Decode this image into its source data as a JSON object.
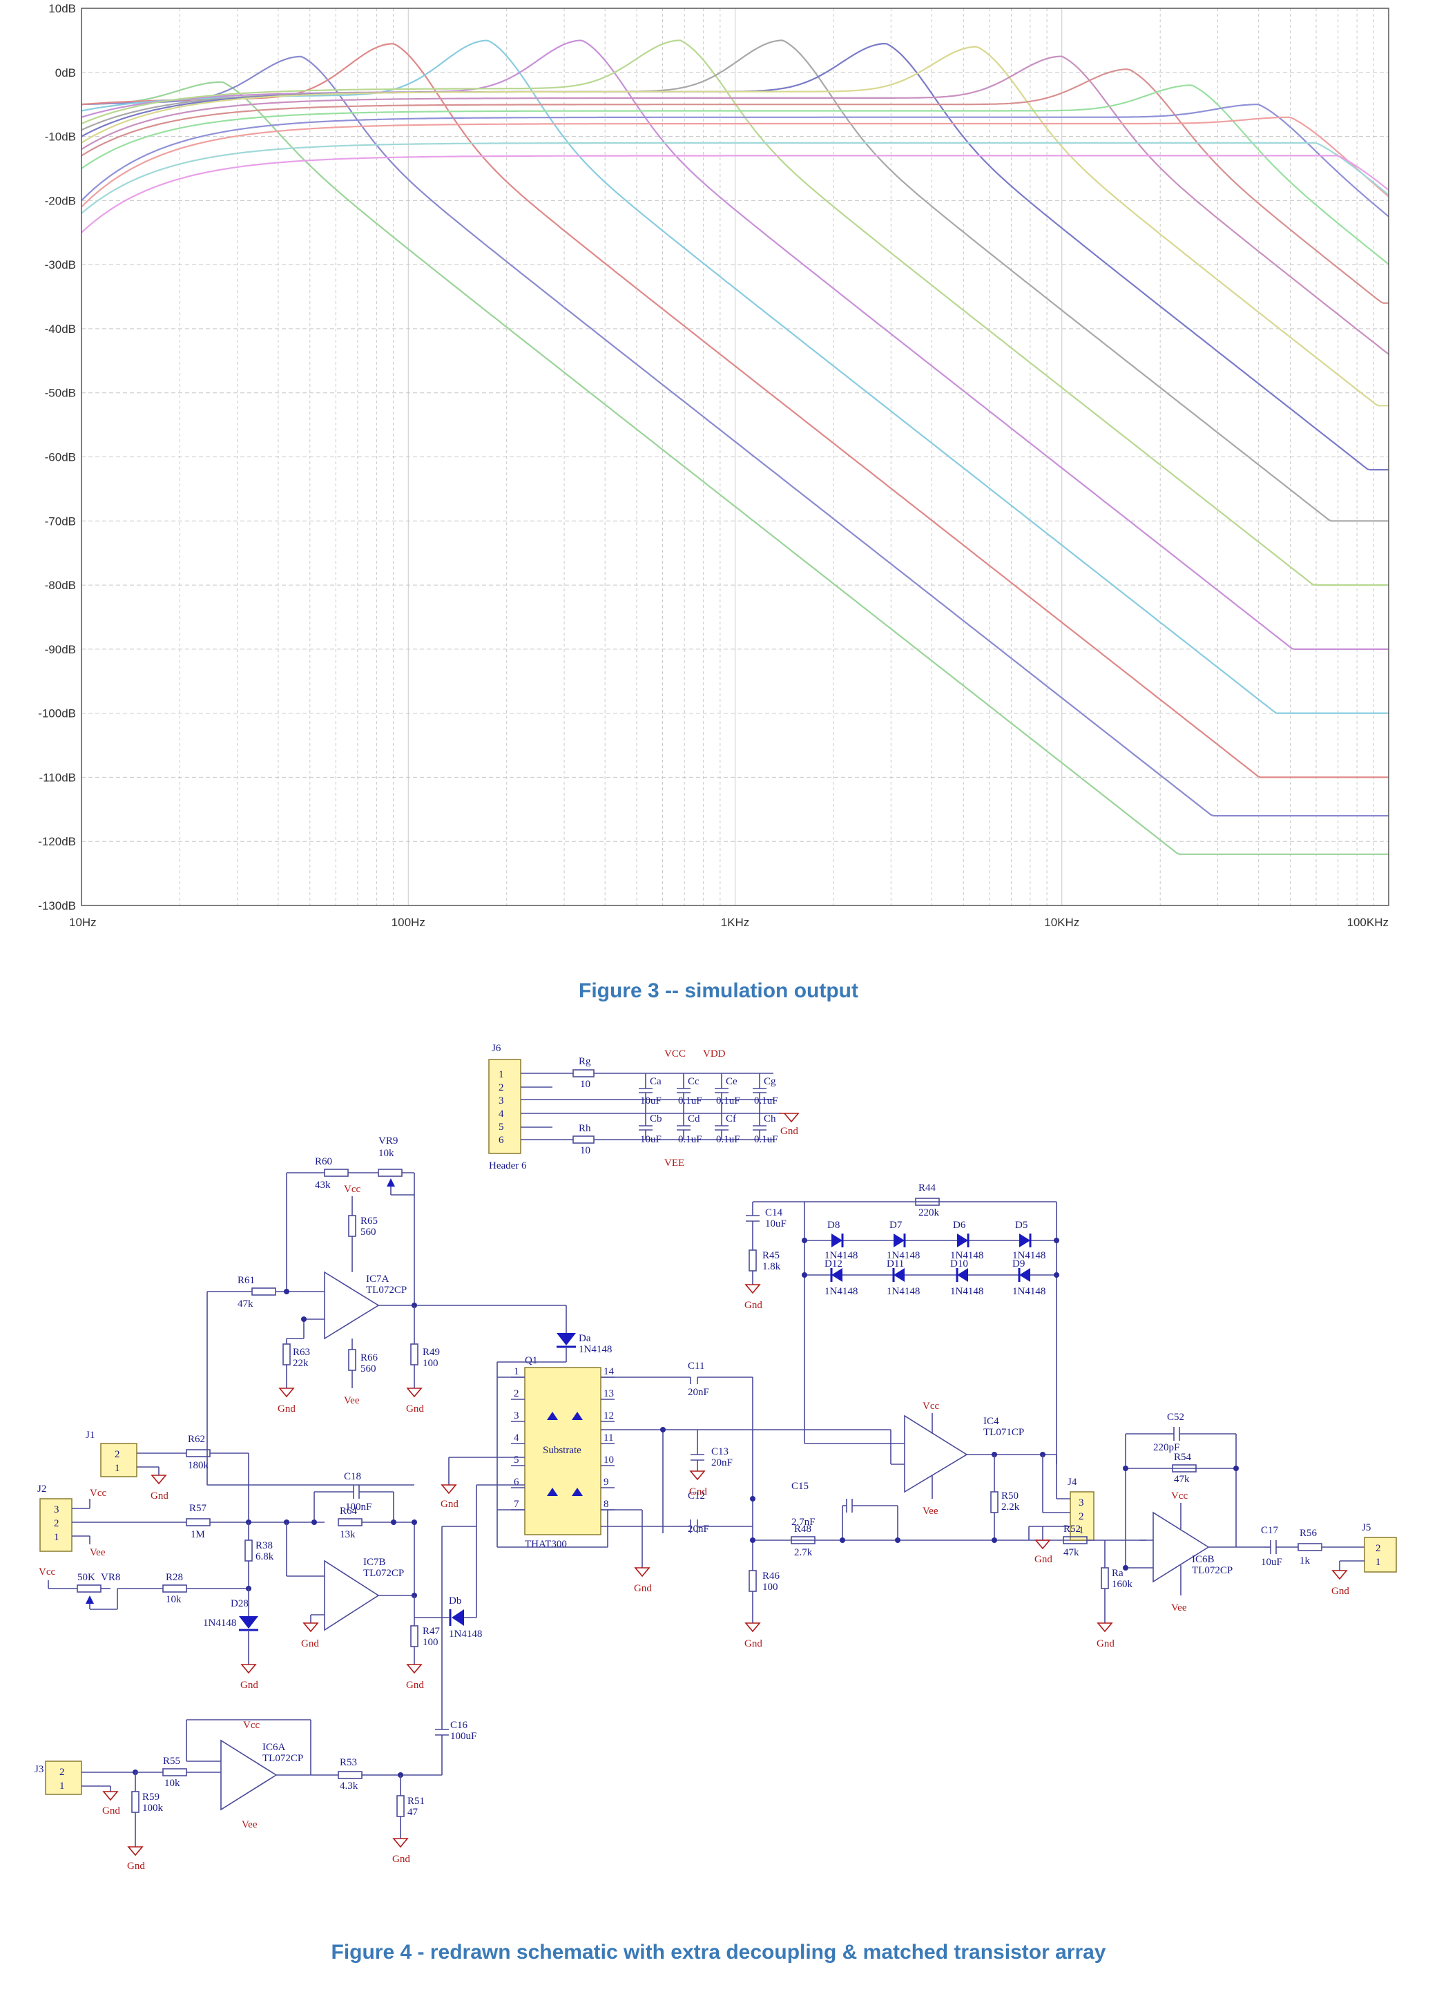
{
  "chart_data": {
    "type": "line",
    "title": "",
    "xlabel": "",
    "ylabel": "",
    "x_scale": "log",
    "xlim": [
      10,
      100000
    ],
    "ylim": [
      -130,
      10
    ],
    "grid": true,
    "legend": "none",
    "y_ticks": [
      "10dB",
      "0dB",
      "-10dB",
      "-20dB",
      "-30dB",
      "-40dB",
      "-50dB",
      "-60dB",
      "-70dB",
      "-80dB",
      "-90dB",
      "-100dB",
      "-110dB",
      "-120dB",
      "-130dB"
    ],
    "x_ticks": [
      "10Hz",
      "100Hz",
      "1KHz",
      "10KHz",
      "100KHz"
    ],
    "series": [
      {
        "color": "#9ad49a",
        "fc_hz": 27,
        "peak_db": -1.5,
        "low_db": -5,
        "start_db": -5,
        "end_db": -122
      },
      {
        "color": "#8a8ad0",
        "fc_hz": 47,
        "peak_db": 2.5,
        "low_db": -4.5,
        "start_db": -5,
        "end_db": -116
      },
      {
        "color": "#e08888",
        "fc_hz": 90,
        "peak_db": 4.5,
        "low_db": -4,
        "start_db": -5,
        "end_db": -110
      },
      {
        "color": "#88cce0",
        "fc_hz": 175,
        "peak_db": 5,
        "low_db": -3.5,
        "start_db": -6,
        "end_db": -100
      },
      {
        "color": "#c890d8",
        "fc_hz": 340,
        "peak_db": 5,
        "low_db": -3,
        "start_db": -7,
        "end_db": -90
      },
      {
        "color": "#b8d890",
        "fc_hz": 680,
        "peak_db": 5,
        "low_db": -2.5,
        "start_db": -8,
        "end_db": -80
      },
      {
        "color": "#a8a8a8",
        "fc_hz": 1400,
        "peak_db": 5,
        "low_db": -3,
        "start_db": -9,
        "end_db": -70
      },
      {
        "color": "#7a7ac8",
        "fc_hz": 2900,
        "peak_db": 4.5,
        "low_db": -3,
        "start_db": -10,
        "end_db": -62
      },
      {
        "color": "#d8d890",
        "fc_hz": 5500,
        "peak_db": 4,
        "low_db": -3,
        "start_db": -11,
        "end_db": -52
      },
      {
        "color": "#c890c0",
        "fc_hz": 10000,
        "peak_db": 2.5,
        "low_db": -4,
        "start_db": -12,
        "end_db": -45
      },
      {
        "color": "#d89090",
        "fc_hz": 16000,
        "peak_db": 0.5,
        "low_db": -5,
        "start_db": -13,
        "end_db": -36
      },
      {
        "color": "#98e0a0",
        "fc_hz": 25000,
        "peak_db": -2,
        "low_db": -6,
        "start_db": -15,
        "end_db": -30
      },
      {
        "color": "#9090d8",
        "fc_hz": 40000,
        "peak_db": -5,
        "low_db": -7,
        "start_db": -20,
        "end_db": -26
      },
      {
        "color": "#f0a0a0",
        "fc_hz": 50000,
        "peak_db": -7,
        "low_db": -8,
        "start_db": -21,
        "end_db": -24
      },
      {
        "color": "#a0d8d8",
        "fc_hz": 60000,
        "peak_db": -11,
        "low_db": -11,
        "start_db": -22,
        "end_db": -26
      },
      {
        "color": "#e8a0e8",
        "fc_hz": 70000,
        "peak_db": -13,
        "low_db": -13,
        "start_db": -25,
        "end_db": -27
      }
    ]
  },
  "figure3_caption": "Figure 3 -- simulation output",
  "figure4_caption": "Figure 4 - redrawn schematic with extra decoupling & matched transistor array",
  "schematic": {
    "labels": {
      "J6": "J6",
      "header6": "Header 6",
      "pins": [
        "1",
        "2",
        "3",
        "4",
        "5",
        "6"
      ],
      "Rg": "Rg",
      "Rg_v": "10",
      "Rh": "Rh",
      "Rh_v": "10",
      "VCC": "VCC",
      "VDD": "VDD",
      "VEE": "VEE",
      "Ca": "Ca",
      "Ca_v": "10uF",
      "Cb": "Cb",
      "Cb_v": "10uF",
      "Cc": "Cc",
      "Cc_v": "0.1uF",
      "Cd": "Cd",
      "Cd_v": "0.1uF",
      "Ce": "Ce",
      "Ce_v": "0.1uF",
      "Cf": "Cf",
      "Cf_v": "0.1uF",
      "Cg": "Cg",
      "Cg_v": "0.1uF",
      "Ch": "Ch",
      "Ch_v": "0.1uF",
      "Gnd": "Gnd",
      "Vcc": "Vcc",
      "Vee": "Vee",
      "R60": "R60",
      "R60_v": "43k",
      "VR9": "VR9",
      "VR9_v": "10k",
      "R65": "R65",
      "R65_v": "560",
      "R66": "R66",
      "R66_v": "560",
      "R61": "R61",
      "R61_v": "47k",
      "R63": "R63",
      "R63_v": "22k",
      "IC7A": "IC7A",
      "TL072CP": "TL072CP",
      "R49": "R49",
      "R49_v": "100",
      "Da": "Da",
      "Db": "Db",
      "D28": "D28",
      "N4148": "1N4148",
      "Q1": "Q1",
      "Substrate": "Substrate",
      "THAT300": "THAT300",
      "C11": "C11",
      "C11_v": "20nF",
      "C12": "C12",
      "C12_v": "20nF",
      "C13": "C13",
      "C13_v": "20nF",
      "C14": "C14",
      "C14_v": "10uF",
      "R45": "R45",
      "R45_v": "1.8k",
      "R44": "R44",
      "R44_v": "220k",
      "D8": "D8",
      "D7": "D7",
      "D6": "D6",
      "D5": "D5",
      "D12": "D12",
      "D11": "D11",
      "D10": "D10",
      "D9": "D9",
      "IC4": "IC4",
      "TL071CP": "TL071CP",
      "C15": "C15",
      "C15_v": "2.7nF",
      "R48": "R48",
      "R48_v": "2.7k",
      "R46": "R46",
      "R46_v": "100",
      "R50": "R50",
      "R50_v": "2.2k",
      "R52": "R52",
      "R52_v": "47k",
      "Ra": "Ra",
      "Ra_v": "160k",
      "C52": "C52",
      "C52_v": "220pF",
      "R54": "R54",
      "R54_v": "47k",
      "IC6B": "IC6B",
      "C17": "C17",
      "C17_v": "10uF",
      "R56": "R56",
      "R56_v": "1k",
      "J1": "J1",
      "J2": "J2",
      "J3": "J3",
      "J4": "J4",
      "J5": "J5",
      "R62": "R62",
      "R62_v": "180k",
      "R57": "R57",
      "R57_v": "1M",
      "C18": "C18",
      "C18_v": "100nF",
      "R64": "R64",
      "R64_v": "13k",
      "IC7B": "IC7B",
      "R38": "R38",
      "R38_v": "6.8k",
      "VR8": "VR8",
      "VR8_v": "50K",
      "R28": "R28",
      "R28_v": "10k",
      "R47": "R47",
      "R47_v": "100",
      "C16": "C16",
      "C16_v": "100uF",
      "IC6A": "IC6A",
      "R55": "R55",
      "R55_v": "10k",
      "R59": "R59",
      "R59_v": "100k",
      "R53": "R53",
      "R53_v": "4.3k",
      "R51": "R51",
      "R51_v": "47"
    }
  }
}
